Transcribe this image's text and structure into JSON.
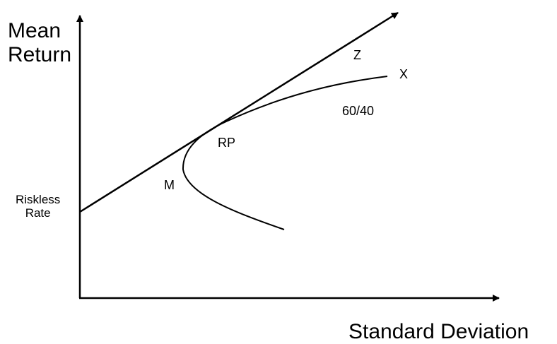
{
  "axes": {
    "y_label_line1": "Mean",
    "y_label_line2": "Return",
    "x_label": "Standard Deviation"
  },
  "points": {
    "riskless_line1": "Riskless",
    "riskless_line2": "Rate",
    "m": "M",
    "rp": "RP",
    "sixty_forty": "60/40",
    "x": "X",
    "z": "Z"
  },
  "colors": {
    "line": "#000000",
    "background": "#ffffff"
  }
}
